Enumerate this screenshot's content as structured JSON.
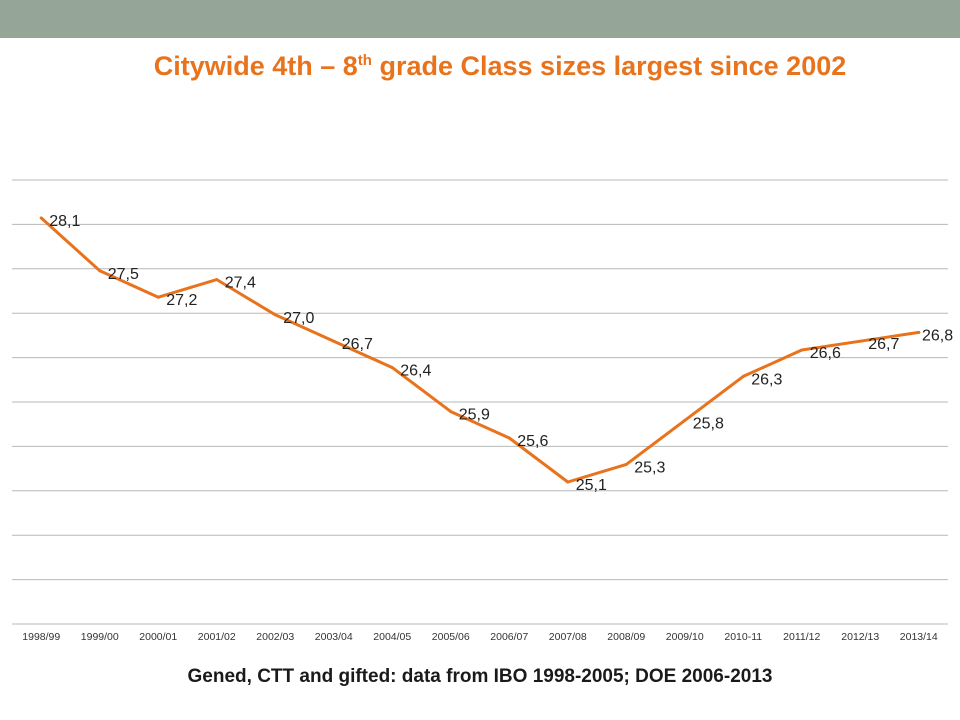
{
  "slide": {
    "title_part1": "Citywide 4th – 8",
    "title_sup": "th",
    "title_part2": " grade Class sizes largest since 2002",
    "source": "Gened, CTT and gifted: data from IBO 1998-2005; DOE 2006-2013"
  },
  "colors": {
    "line": "#E9731C",
    "grid": "#B8B8B8",
    "header_bar": "#95A597"
  },
  "chart_data": {
    "type": "line",
    "title": "Citywide 4th – 8th grade Class sizes largest since 2002",
    "categories": [
      "1998/99",
      "1999/00",
      "2000/01",
      "2001/02",
      "2002/03",
      "2003/04",
      "2004/05",
      "2005/06",
      "2006/07",
      "2007/08",
      "2008/09",
      "2009/10",
      "2010-11",
      "2011/12",
      "2012/13",
      "2013/14"
    ],
    "values": [
      28.1,
      27.5,
      27.2,
      27.4,
      27.0,
      26.7,
      26.4,
      25.9,
      25.6,
      25.1,
      25.3,
      25.8,
      26.3,
      26.6,
      26.7,
      26.8
    ],
    "data_labels": [
      "28,1",
      "27,5",
      "27,2",
      "27,4",
      "27,0",
      "26,7",
      "26,4",
      "25,9",
      "25,6",
      "25,1",
      "25,3",
      "25,8",
      "26,3",
      "26,6",
      "26,7",
      "26,8"
    ],
    "gridlines": 10,
    "grid": true,
    "legend": false
  }
}
